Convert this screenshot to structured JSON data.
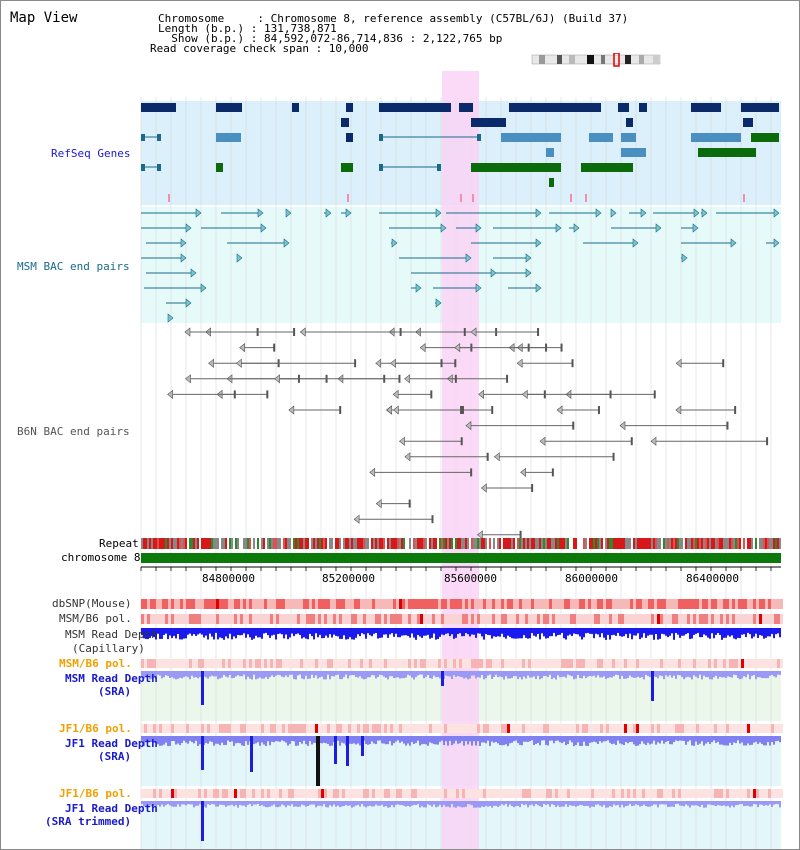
{
  "header": {
    "title": "Map View",
    "info_lines": [
      "Chromosome     : Chromosome 8, reference assembly (C57BL/6J) (Build 37)",
      "Length (b.p.) : 131,738,871",
      "  Show (b.p.) : 84,592,072-86,714,836 : 2,122,765 bp",
      "Read coverage check span : 10,000"
    ]
  },
  "tracks": {
    "refseq": "RefSeq Genes",
    "msm_bac": "MSM BAC end pairs",
    "b6n_bac": "B6N BAC end pairs",
    "repeat": "Repeat",
    "chromosome": "chromosome 8",
    "dbsnp": "dbSNP(Mouse)",
    "msm_b6_pol_1": "MSM/B6 pol.",
    "msm_read_depth_cap_1": "MSM Read Depth",
    "msm_read_depth_cap_2": "(Capillary)",
    "msm_b6_pol_2": "MSM/B6 pol.",
    "msm_read_depth_sra_1": "MSM Read Depth",
    "msm_read_depth_sra_2": "(SRA)",
    "jf1_b6_pol_1": "JF1/B6 pol.",
    "jf1_read_depth_sra_1": "JF1 Read Depth",
    "jf1_read_depth_sra_2": "(SRA)",
    "jf1_b6_pol_2": "JF1/B6 pol.",
    "jf1_read_depth_trim_1": "JF1 Read Depth",
    "jf1_read_depth_trim_2": "(SRA trimmed)"
  },
  "axis": {
    "ticks": [
      "84800000",
      "85200000",
      "85600000",
      "86000000",
      "86400000"
    ]
  },
  "colors": {
    "highlight": "#f9d4f5",
    "refseq_bg": "#dbf0fb",
    "msm_bg": "#e6fafa",
    "gene_dark": "#0a2a6a",
    "gene_mid": "#4a8fbf",
    "gene_green": "#0b6b0b",
    "label_blue": "#1a1acc",
    "label_orange": "#f0a000"
  }
}
